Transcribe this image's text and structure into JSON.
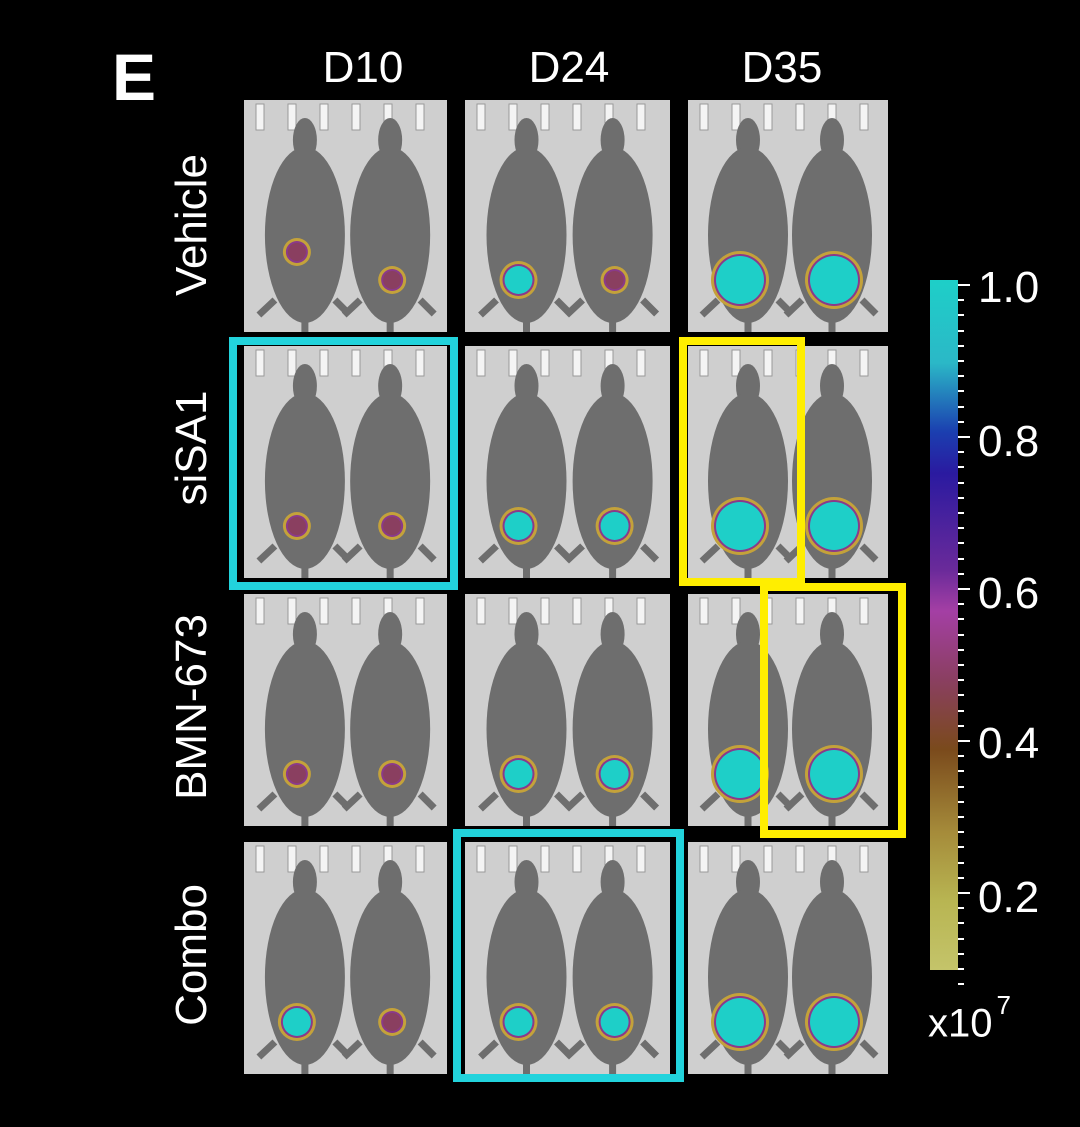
{
  "panel_letter": "E",
  "columns": [
    {
      "label": "D10"
    },
    {
      "label": "D24"
    },
    {
      "label": "D35"
    }
  ],
  "rows": [
    {
      "label": "Vehicle"
    },
    {
      "label": "siSA1"
    },
    {
      "label": "BMN-673"
    },
    {
      "label": "Combo"
    }
  ],
  "highlight_colors": {
    "cyan": "#22d3dc",
    "yellow": "#ffee00"
  },
  "tile_background": "#cfcfcf",
  "mouse_color": "#6e6e6e",
  "colorbar": {
    "ticks": [
      "1.0",
      "0.8",
      "0.6",
      "0.4",
      "0.2"
    ],
    "unit": "x10",
    "exponent": "7"
  }
}
